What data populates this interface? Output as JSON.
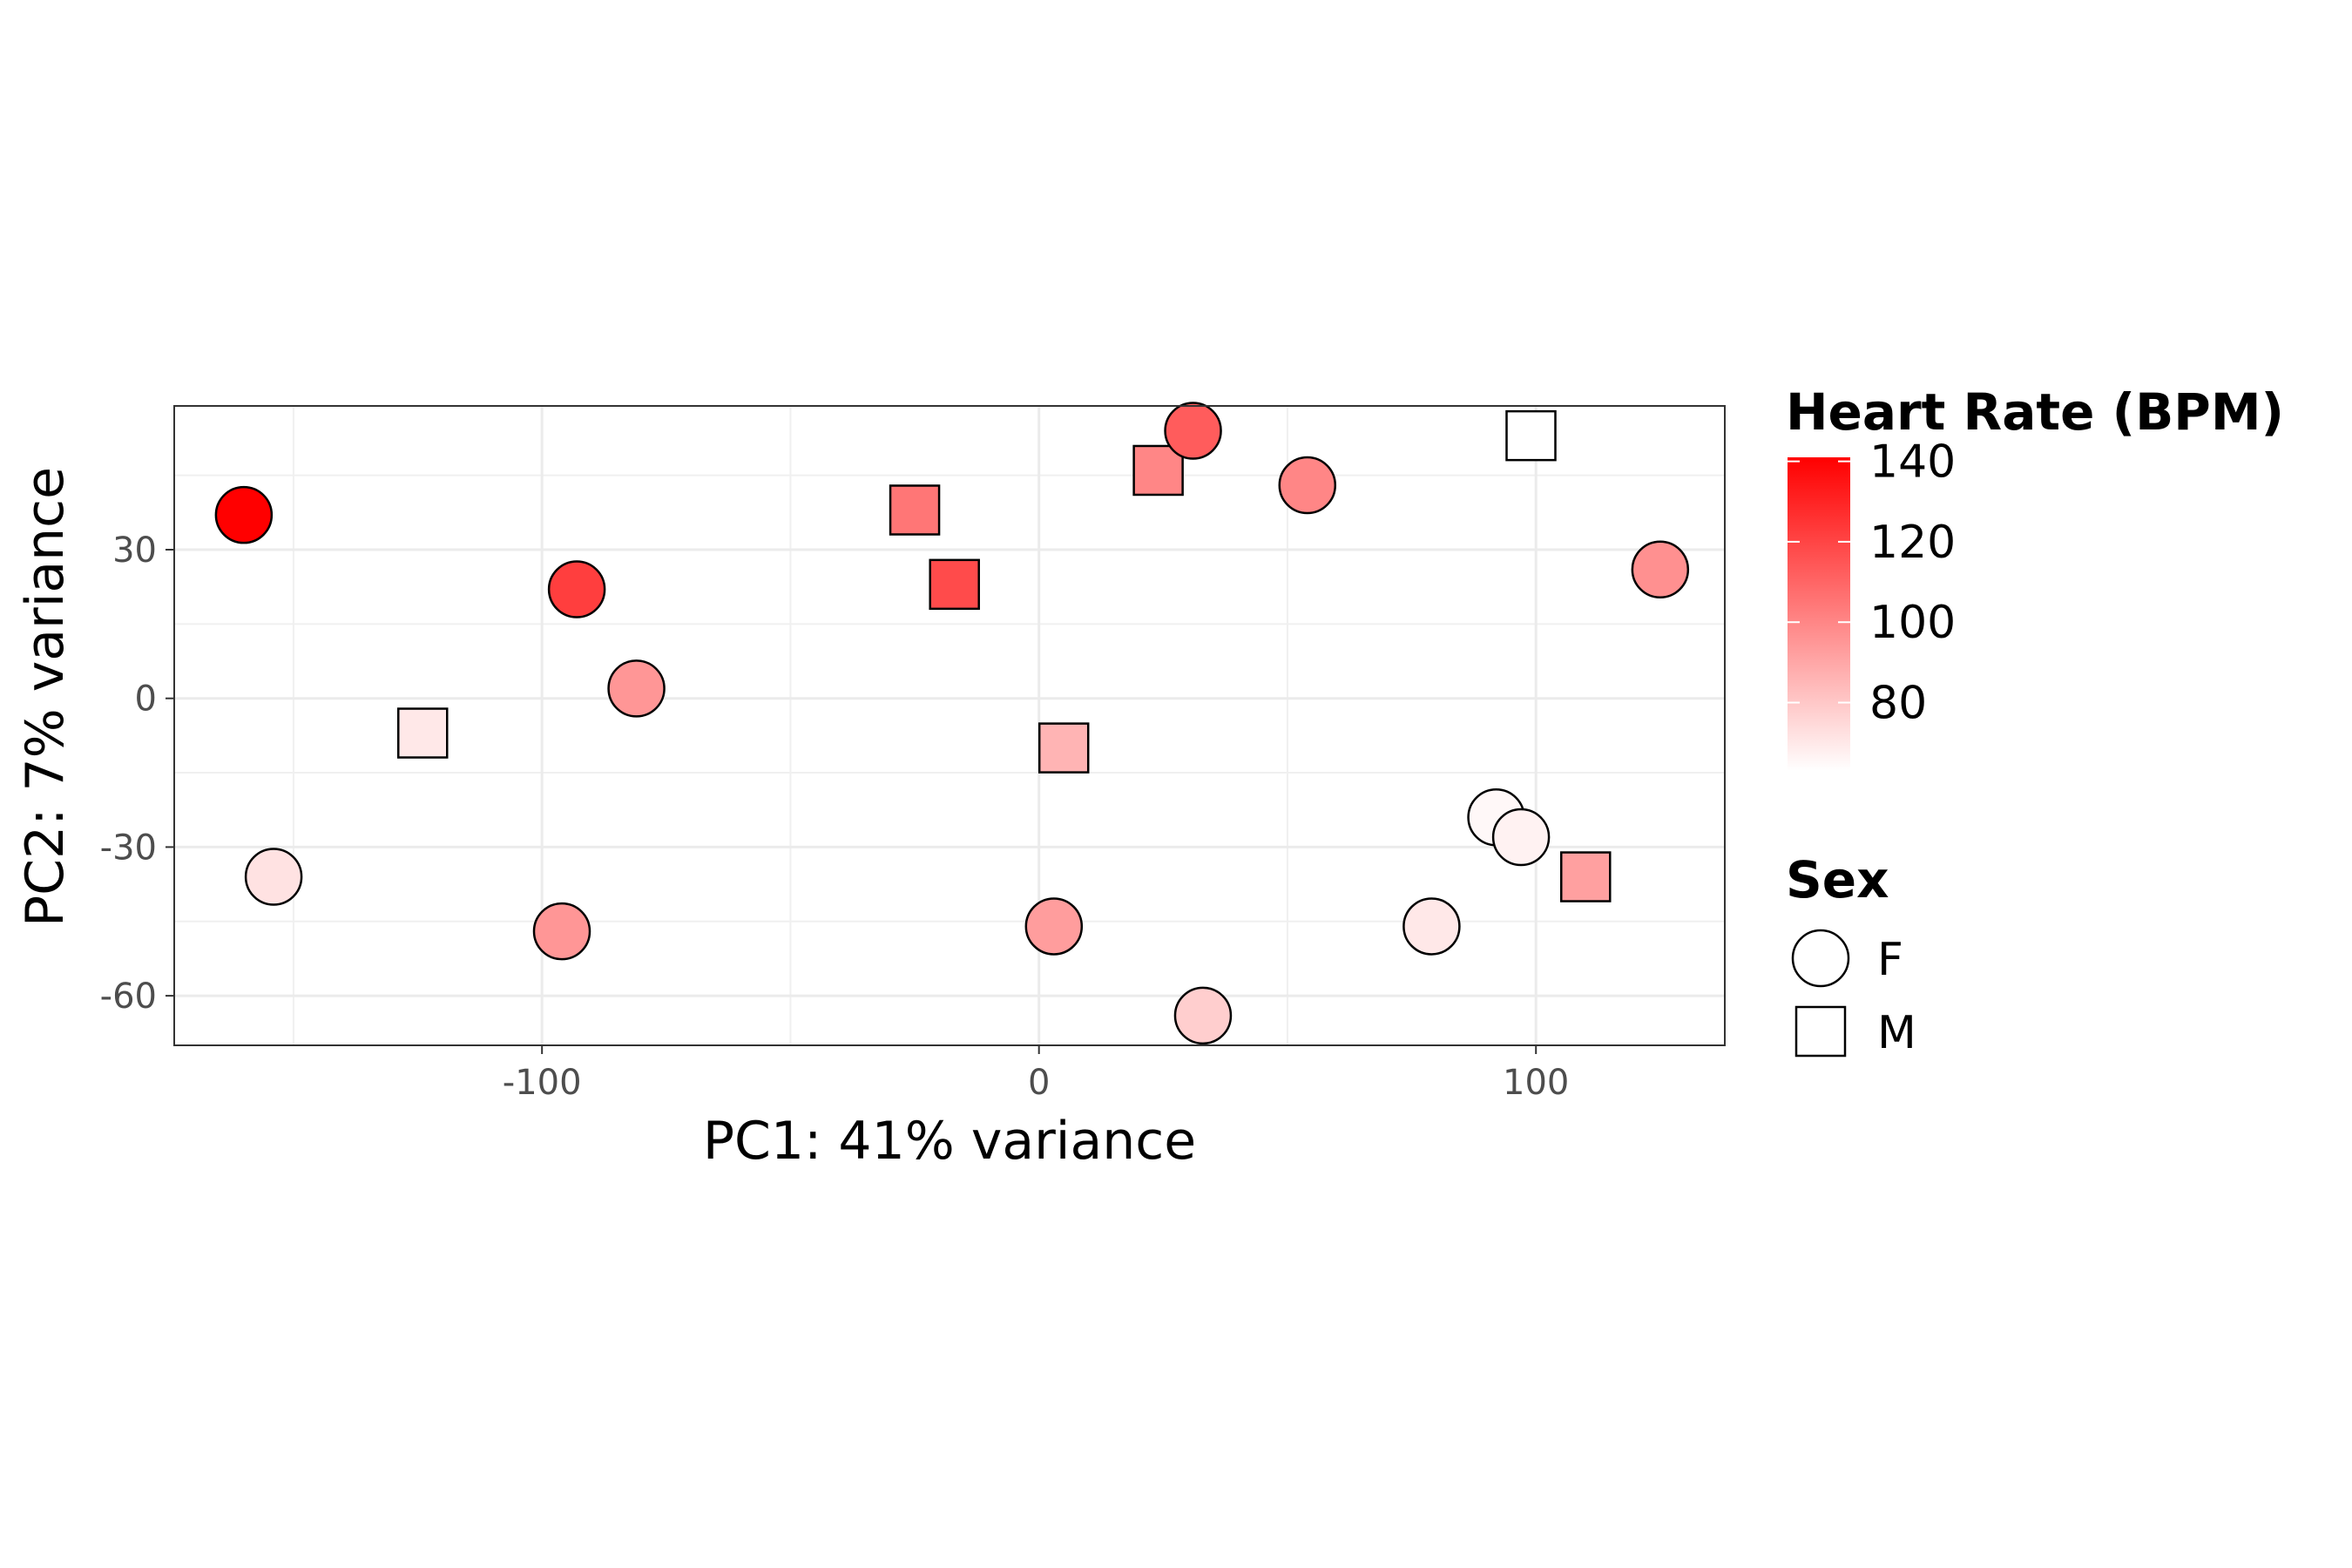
{
  "chart_data": {
    "type": "scatter",
    "title": "",
    "xlabel": "PC1: 41% variance",
    "ylabel": "PC2: 7% variance",
    "xlim": [
      -174,
      138
    ],
    "ylim": [
      -70,
      59
    ],
    "x_ticks": [
      -100,
      0,
      100
    ],
    "x_tick_labels": [
      "-100",
      "0",
      "100"
    ],
    "y_ticks": [
      -60,
      -30,
      0,
      30
    ],
    "y_tick_labels": [
      "-60",
      "-30",
      "0",
      "30"
    ],
    "grid": true,
    "color_legend": {
      "title": "Heart Rate (BPM)",
      "ticks": [
        80,
        100,
        120,
        140
      ],
      "tick_labels": [
        "80",
        "100",
        "120",
        "140"
      ],
      "range": [
        63,
        141
      ],
      "low_color": "#FFFFFF",
      "high_color": "#FF0000"
    },
    "shape_legend": {
      "title": "Sex",
      "entries": [
        {
          "label": "F",
          "shape": "circle"
        },
        {
          "label": "M",
          "shape": "square"
        }
      ]
    },
    "legend_position": "right",
    "points": [
      {
        "x": -160,
        "y": 37,
        "heart_rate": 141,
        "sex": "F"
      },
      {
        "x": -154,
        "y": -36,
        "heart_rate": 72,
        "sex": "F"
      },
      {
        "x": -124,
        "y": -7,
        "heart_rate": 70,
        "sex": "M"
      },
      {
        "x": -96,
        "y": -47,
        "heart_rate": 95,
        "sex": "F"
      },
      {
        "x": -93,
        "y": 22,
        "heart_rate": 122,
        "sex": "F"
      },
      {
        "x": -81,
        "y": 2,
        "heart_rate": 95,
        "sex": "F"
      },
      {
        "x": -25,
        "y": 38,
        "heart_rate": 105,
        "sex": "M"
      },
      {
        "x": -17,
        "y": 23,
        "heart_rate": 118,
        "sex": "M"
      },
      {
        "x": 3,
        "y": -46,
        "heart_rate": 93,
        "sex": "F"
      },
      {
        "x": 5,
        "y": -10,
        "heart_rate": 86,
        "sex": "M"
      },
      {
        "x": 24,
        "y": 46,
        "heart_rate": 100,
        "sex": "M"
      },
      {
        "x": 31,
        "y": 54,
        "heart_rate": 113,
        "sex": "F"
      },
      {
        "x": 33,
        "y": -64,
        "heart_rate": 78,
        "sex": "F"
      },
      {
        "x": 54,
        "y": 43,
        "heart_rate": 100,
        "sex": "F"
      },
      {
        "x": 79,
        "y": -46,
        "heart_rate": 70,
        "sex": "F"
      },
      {
        "x": 92,
        "y": -24,
        "heart_rate": 65,
        "sex": "F"
      },
      {
        "x": 97,
        "y": -28,
        "heart_rate": 67,
        "sex": "F"
      },
      {
        "x": 99,
        "y": 53,
        "heart_rate": 63,
        "sex": "M"
      },
      {
        "x": 110,
        "y": -36,
        "heart_rate": 92,
        "sex": "M"
      },
      {
        "x": 125,
        "y": 26,
        "heart_rate": 97,
        "sex": "F"
      }
    ]
  }
}
